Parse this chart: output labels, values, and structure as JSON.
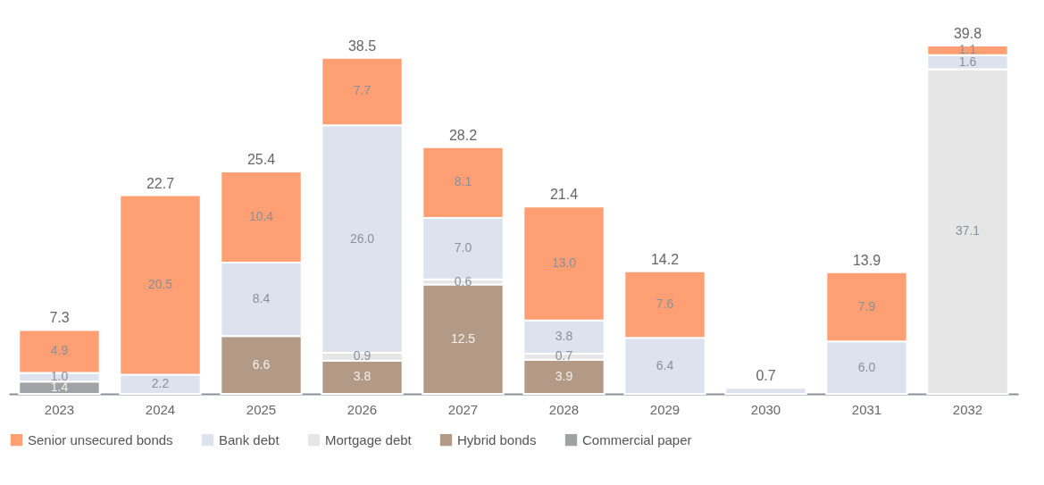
{
  "chart_data": {
    "type": "bar",
    "stacked": true,
    "legend": "bottom",
    "tick_labels": "x",
    "grid": false,
    "categories": [
      "2023",
      "2024",
      "2025",
      "2026",
      "2027",
      "2028",
      "2029",
      "2030",
      "2031",
      "2032"
    ],
    "series": [
      {
        "name": "Commercial paper",
        "color": "#a0a2a6",
        "values": [
          1.4,
          null,
          null,
          null,
          null,
          null,
          null,
          null,
          null,
          null
        ],
        "value_labels": [
          "1.4",
          null,
          null,
          null,
          null,
          null,
          null,
          null,
          null,
          null
        ]
      },
      {
        "name": "Hybrid bonds",
        "color": "#b39a86",
        "values": [
          null,
          null,
          6.6,
          3.8,
          12.5,
          3.9,
          null,
          null,
          null,
          null
        ],
        "value_labels": [
          null,
          null,
          "6.6",
          "3.8",
          "12.5",
          "3.9",
          null,
          null,
          null,
          null
        ]
      },
      {
        "name": "Mortgage debt",
        "color": "#e6e6e6",
        "values": [
          null,
          null,
          null,
          0.9,
          0.6,
          0.7,
          null,
          null,
          null,
          37.1
        ],
        "value_labels": [
          null,
          null,
          null,
          "0.9",
          "0.6",
          "0.7",
          null,
          null,
          null,
          "37.1"
        ]
      },
      {
        "name": "Bank debt",
        "color": "#dde3ee",
        "values": [
          1.0,
          2.2,
          8.4,
          26.0,
          7.0,
          3.8,
          6.4,
          0.7,
          6.0,
          1.6
        ],
        "value_labels": [
          "1.0",
          "2.2",
          "8.4",
          "26.0",
          "7.0",
          "3.8",
          "6.4",
          null,
          "6.0",
          "1.6"
        ]
      },
      {
        "name": "Senior unsecured bonds",
        "color": "#ff9f73",
        "values": [
          4.9,
          20.5,
          10.4,
          7.7,
          8.1,
          13.0,
          7.6,
          null,
          7.9,
          1.1
        ],
        "value_labels": [
          "4.9",
          "20.5",
          "10.4",
          "7.7",
          "8.1",
          "13.0",
          "7.6",
          null,
          "7.9",
          "1.1"
        ]
      }
    ],
    "totals": [
      "7.3",
      "22.7",
      "25.4",
      "38.5",
      "28.2",
      "21.4",
      "14.2",
      "0.7",
      "13.9",
      "39.8"
    ]
  }
}
